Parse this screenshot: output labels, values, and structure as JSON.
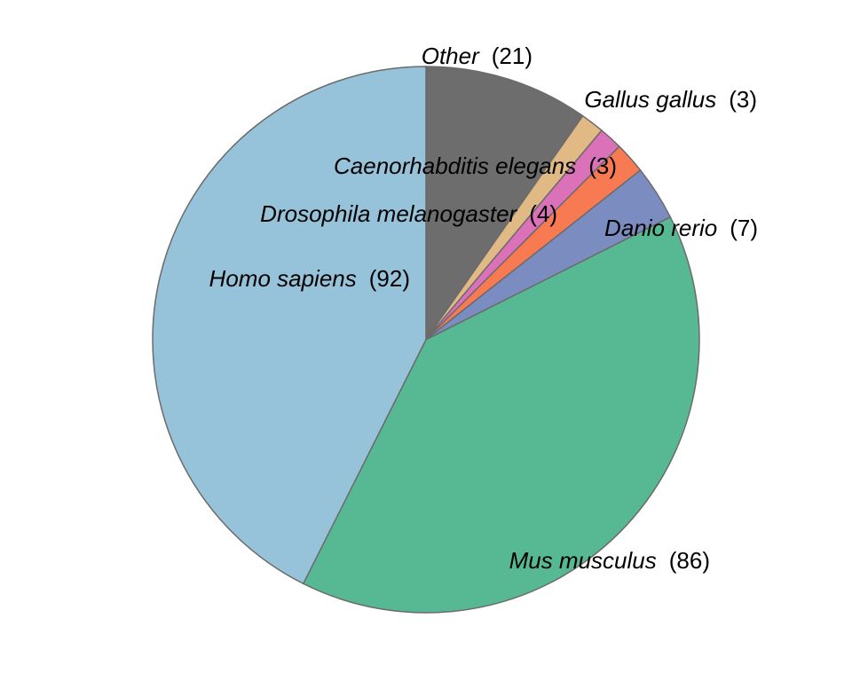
{
  "chart_data": {
    "type": "pie",
    "start": "12 o'clock",
    "direction": "clockwise",
    "slices": [
      {
        "label": "Other",
        "value": 21,
        "display": "(21)",
        "color": "#6d6d6d"
      },
      {
        "label": "Gallus gallus",
        "value": 3,
        "display": "(3)",
        "color": "#e0b984"
      },
      {
        "label": "Caenorhabditis elegans",
        "value": 3,
        "display": "(3)",
        "color": "#db71b9"
      },
      {
        "label": "Drosophila melanogaster",
        "value": 4,
        "display": "(4)",
        "color": "#f77a53"
      },
      {
        "label": "Danio rerio",
        "value": 7,
        "display": "(7)",
        "color": "#7a8cc0"
      },
      {
        "label": "Mus musculus",
        "value": 86,
        "display": "(86)",
        "color": "#57b993"
      },
      {
        "label": "Homo sapiens",
        "value": 92,
        "display": "(92)",
        "color": "#97c3da"
      }
    ]
  }
}
